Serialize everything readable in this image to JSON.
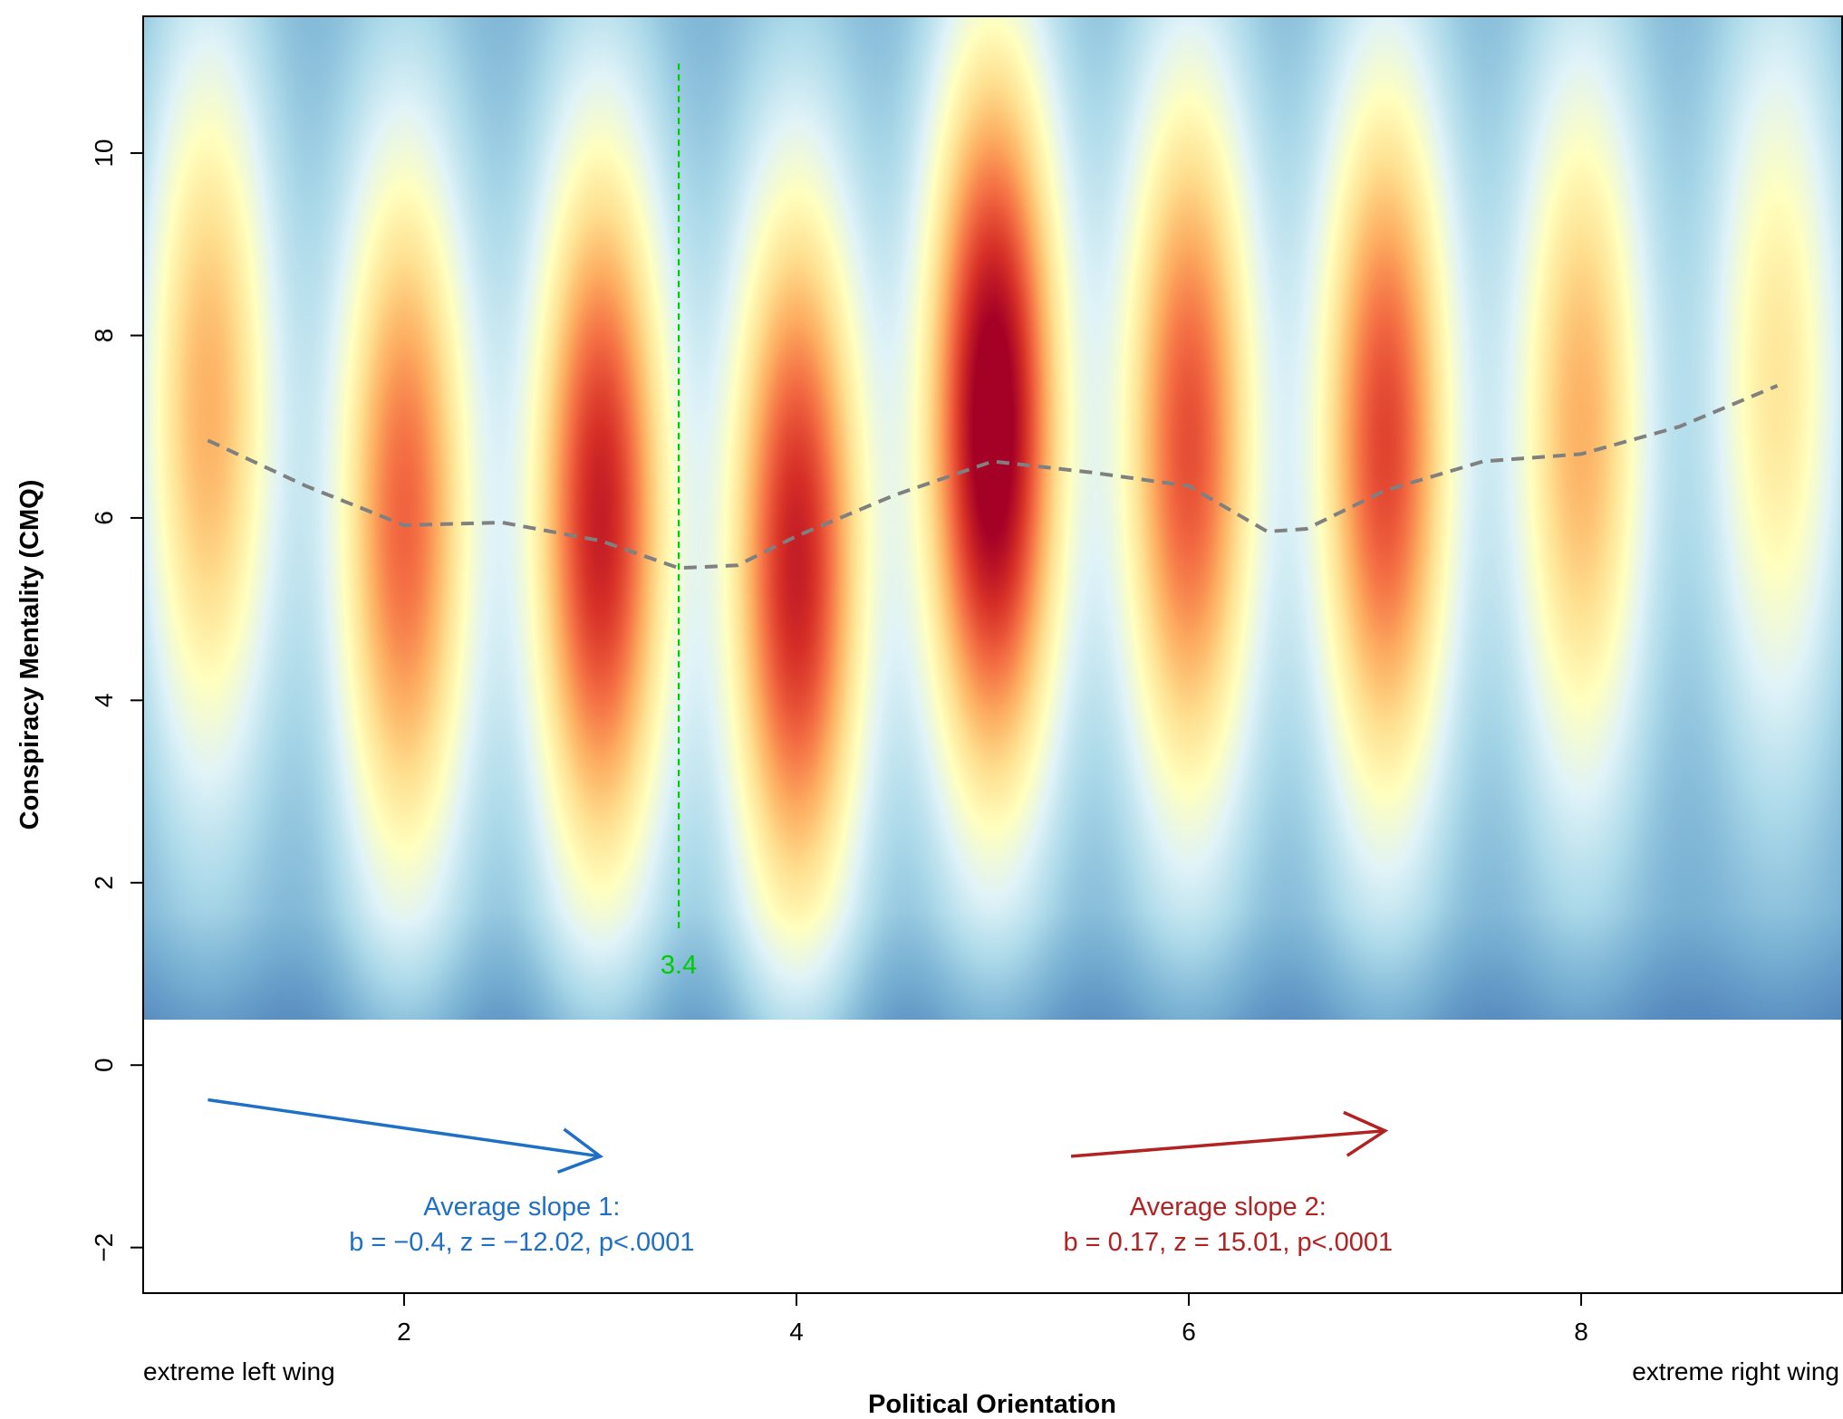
{
  "chart_data": {
    "type": "heatmap",
    "xlabel": "Political Orientation",
    "ylabel": "Conspiracy Mentality (CMQ)",
    "xlim": [
      0.67,
      9.33
    ],
    "ylim": [
      -2.5,
      11.5
    ],
    "density_region_ylim": [
      0.5,
      11.5
    ],
    "x_ticks": [
      2,
      4,
      6,
      8
    ],
    "y_ticks": [
      -2,
      0,
      2,
      4,
      6,
      8,
      10
    ],
    "x_end_labels": {
      "left": "extreme left wing",
      "right": "extreme right wing"
    },
    "colors": {
      "low": "#313695",
      "mid": "#ffffbf",
      "high": "#a50026",
      "mean_line": "#808080",
      "breakpoint": "#00cc00",
      "slope1": "#1f6fc5",
      "slope2": "#b22222"
    },
    "density_columns": [
      {
        "x": 1,
        "peak_y": 7.2,
        "intensity": 0.58
      },
      {
        "x": 2,
        "peak_y": 6.0,
        "intensity": 0.72
      },
      {
        "x": 3,
        "peak_y": 6.0,
        "intensity": 0.86
      },
      {
        "x": 4,
        "peak_y": 5.5,
        "intensity": 0.86
      },
      {
        "x": 5,
        "peak_y": 7.0,
        "intensity": 1.0
      },
      {
        "x": 6,
        "peak_y": 6.8,
        "intensity": 0.76
      },
      {
        "x": 7,
        "peak_y": 6.8,
        "intensity": 0.78
      },
      {
        "x": 8,
        "peak_y": 7.0,
        "intensity": 0.58
      },
      {
        "x": 9,
        "peak_y": 7.5,
        "intensity": 0.45
      }
    ],
    "mean_line": {
      "x": [
        1,
        1.5,
        2,
        2.5,
        3,
        3.4,
        3.7,
        4,
        4.5,
        5,
        5.5,
        6,
        6.4,
        6.6,
        7,
        7.5,
        8,
        8.5,
        9
      ],
      "y": [
        6.85,
        6.35,
        5.92,
        5.95,
        5.75,
        5.45,
        5.48,
        5.8,
        6.25,
        6.62,
        6.5,
        6.35,
        5.85,
        5.88,
        6.3,
        6.62,
        6.7,
        7.0,
        7.45
      ]
    },
    "breakpoint": {
      "x": 3.4,
      "y_from": 1.5,
      "y_to": 11.0,
      "label": "3.4"
    },
    "slopes": [
      {
        "label_line1": "Average slope 1:",
        "label_line2": "b = −0.4, z = −12.02, p<.0001",
        "arrow": {
          "x0": 1.0,
          "y0": -0.38,
          "x1": 3.0,
          "y1": -1.0
        },
        "label_x": 2.6
      },
      {
        "label_line1": "Average slope 2:",
        "label_line2": "b = 0.17, z = 15.01, p<.0001",
        "arrow": {
          "x0": 5.4,
          "y0": -1.0,
          "x1": 7.0,
          "y1": -0.72
        },
        "label_x": 6.2
      }
    ]
  }
}
